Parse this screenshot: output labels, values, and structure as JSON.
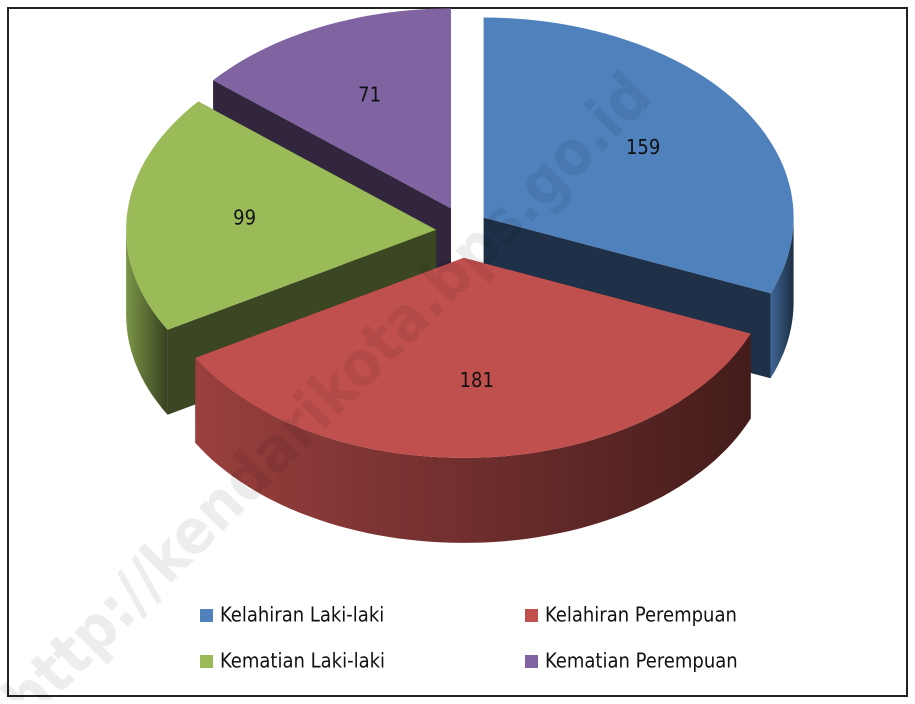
{
  "chart_data": {
    "type": "pie",
    "three_d": true,
    "exploded": true,
    "categories": [
      "Kelahiran Laki-laki",
      "Kelahiran Perempuan",
      "Kematian Laki-laki",
      "Kematian Perempuan"
    ],
    "values": [
      159,
      181,
      99,
      71
    ],
    "colors": [
      "#4f81bd",
      "#c0504d",
      "#9bbb59",
      "#8064a2"
    ],
    "legend": "bottom",
    "watermark": "http://kendarikota.bps.go.id"
  }
}
